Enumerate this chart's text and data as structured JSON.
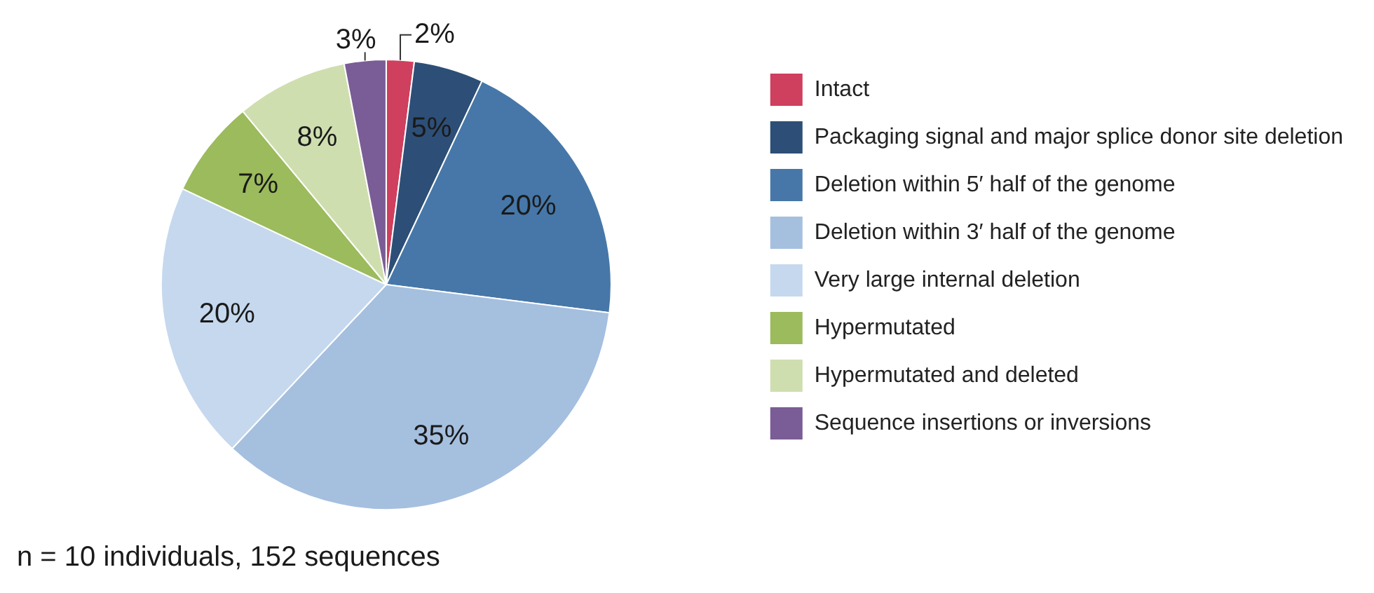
{
  "chart_data": {
    "type": "pie",
    "categories": [
      "Intact",
      "Packaging signal and major splice donor site deletion",
      "Deletion within 5′ half of the genome",
      "Deletion within 3′ half of the genome",
      "Very large internal deletion",
      "Hypermutated",
      "Hypermutated and deleted",
      "Sequence insertions or inversions"
    ],
    "values": [
      2,
      5,
      20,
      35,
      20,
      7,
      8,
      3
    ],
    "value_labels": [
      "2%",
      "5%",
      "20%",
      "35%",
      "20%",
      "7%",
      "8%",
      "3%"
    ],
    "colors": [
      "#cf3f5e",
      "#2d4f77",
      "#4677a8",
      "#a5bfdf",
      "#c5d8ee",
      "#9bbb5c",
      "#cfdeaf",
      "#7a5c96"
    ],
    "legend": "right",
    "annotations": [
      "n = 10 individuals, 152 sequences"
    ]
  }
}
